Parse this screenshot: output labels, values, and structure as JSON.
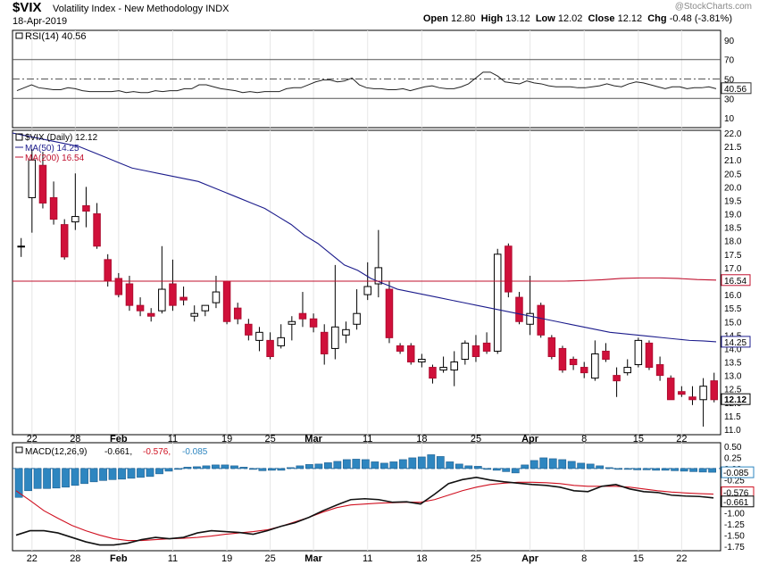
{
  "header": {
    "symbol": "$VIX",
    "name": "Volatility Index - New Methodology  INDX",
    "date": "18-Apr-2019",
    "brand": "@StockCharts.com",
    "open_label": "Open",
    "open": "12.80",
    "high_label": "High",
    "high": "13.12",
    "low_label": "Low",
    "low": "12.02",
    "close_label": "Close",
    "close": "12.12",
    "chg_label": "Chg",
    "chg": "-0.48 (-3.81%)"
  },
  "chart_data": [
    {
      "type": "line",
      "panel": "rsi",
      "legend": "RSI(14) 40.56",
      "yticks": [
        10,
        30,
        50,
        70,
        90
      ],
      "ylim": [
        0,
        100
      ],
      "reference_lines": [
        30,
        50,
        70
      ],
      "current_value_label": "40.56",
      "series": [
        {
          "name": "RSI(14)",
          "values": [
            38,
            41,
            44,
            41,
            40,
            39,
            39,
            41,
            40,
            38,
            37,
            37,
            37,
            37,
            38,
            36,
            37,
            36,
            36,
            38,
            37,
            38,
            38,
            40,
            40,
            44,
            44,
            42,
            40,
            39,
            38,
            36,
            37,
            36,
            37,
            37,
            37,
            40,
            41,
            41,
            44,
            47,
            49,
            49,
            47,
            48,
            51,
            44,
            41,
            40,
            40,
            39,
            39,
            40,
            38,
            40,
            42,
            43,
            41,
            40,
            40,
            42,
            45,
            51,
            57,
            57,
            53,
            47,
            46,
            45,
            48,
            46,
            45,
            43,
            42,
            42,
            42,
            41,
            41,
            42,
            43,
            45,
            43,
            42,
            45,
            47,
            46,
            44,
            42,
            40,
            42,
            42,
            40,
            41,
            41,
            42,
            40
          ]
        }
      ]
    },
    {
      "type": "candlestick",
      "panel": "price",
      "legend": [
        "$VIX (Daily) 12.12",
        "MA(50) 14.25",
        "MA(200) 16.54"
      ],
      "yticks": [
        11.0,
        11.5,
        12.0,
        12.5,
        13.0,
        13.5,
        14.0,
        14.5,
        15.0,
        15.5,
        16.0,
        16.5,
        17.0,
        17.5,
        18.0,
        18.5,
        19.0,
        19.5,
        20.0,
        20.5,
        21.0,
        21.5,
        22.0
      ],
      "ytick_labels": [
        "11.0",
        "11.5",
        "12.0",
        "12.5",
        "13.0",
        "13.5",
        "14.0",
        "14.5",
        "15.0",
        "15.5",
        "16.0",
        "16.5",
        "17.0",
        "17.5",
        "18.0",
        "18.5",
        "19.0",
        "19.5",
        "20.0",
        "20.5",
        "21.0",
        "21.5",
        "22.0"
      ],
      "ylim": [
        10.8,
        22.1
      ],
      "last_value_labels": {
        "ma200": "16.54",
        "ma50": "14.25",
        "close": "12.12"
      },
      "candles": [
        {
          "o": 17.8,
          "h": 18.1,
          "l": 17.4,
          "c": 17.8
        },
        {
          "o": 19.6,
          "h": 21.4,
          "l": 18.3,
          "c": 21.0
        },
        {
          "o": 20.8,
          "h": 21.3,
          "l": 19.2,
          "c": 19.4
        },
        {
          "o": 19.6,
          "h": 20.2,
          "l": 18.6,
          "c": 18.8
        },
        {
          "o": 18.6,
          "h": 18.8,
          "l": 17.3,
          "c": 17.4
        },
        {
          "o": 18.7,
          "h": 20.5,
          "l": 18.4,
          "c": 18.9
        },
        {
          "o": 19.3,
          "h": 20.0,
          "l": 18.5,
          "c": 19.1
        },
        {
          "o": 19.0,
          "h": 19.4,
          "l": 17.7,
          "c": 17.8
        },
        {
          "o": 17.3,
          "h": 17.5,
          "l": 16.3,
          "c": 16.5
        },
        {
          "o": 16.6,
          "h": 16.8,
          "l": 15.9,
          "c": 16.0
        },
        {
          "o": 16.4,
          "h": 16.7,
          "l": 15.4,
          "c": 15.6
        },
        {
          "o": 15.6,
          "h": 15.9,
          "l": 15.2,
          "c": 15.4
        },
        {
          "o": 15.3,
          "h": 15.5,
          "l": 15.0,
          "c": 15.2
        },
        {
          "o": 15.4,
          "h": 17.8,
          "l": 15.3,
          "c": 16.2
        },
        {
          "o": 16.4,
          "h": 17.3,
          "l": 15.4,
          "c": 15.6
        },
        {
          "o": 15.9,
          "h": 16.3,
          "l": 15.6,
          "c": 15.8
        },
        {
          "o": 15.2,
          "h": 15.6,
          "l": 15.0,
          "c": 15.3
        },
        {
          "o": 15.4,
          "h": 15.6,
          "l": 15.2,
          "c": 15.6
        },
        {
          "o": 15.7,
          "h": 16.7,
          "l": 15.5,
          "c": 16.1
        },
        {
          "o": 16.5,
          "h": 16.5,
          "l": 14.9,
          "c": 15.0
        },
        {
          "o": 15.5,
          "h": 15.7,
          "l": 14.9,
          "c": 15.1
        },
        {
          "o": 14.9,
          "h": 15.1,
          "l": 14.3,
          "c": 14.5
        },
        {
          "o": 14.3,
          "h": 14.8,
          "l": 13.9,
          "c": 14.6
        },
        {
          "o": 14.3,
          "h": 14.6,
          "l": 13.6,
          "c": 13.7
        },
        {
          "o": 14.1,
          "h": 14.9,
          "l": 14.0,
          "c": 14.4
        },
        {
          "o": 14.9,
          "h": 15.2,
          "l": 14.3,
          "c": 15.0
        },
        {
          "o": 15.3,
          "h": 16.1,
          "l": 14.8,
          "c": 15.1
        },
        {
          "o": 15.1,
          "h": 15.3,
          "l": 14.6,
          "c": 14.8
        },
        {
          "o": 14.6,
          "h": 14.9,
          "l": 13.4,
          "c": 13.8
        },
        {
          "o": 14.0,
          "h": 17.1,
          "l": 13.6,
          "c": 14.8
        },
        {
          "o": 14.5,
          "h": 15.0,
          "l": 14.2,
          "c": 14.7
        },
        {
          "o": 14.9,
          "h": 16.2,
          "l": 14.7,
          "c": 15.3
        },
        {
          "o": 16.0,
          "h": 17.2,
          "l": 15.8,
          "c": 16.3
        },
        {
          "o": 16.4,
          "h": 18.4,
          "l": 15.9,
          "c": 17.0
        },
        {
          "o": 16.2,
          "h": 16.5,
          "l": 14.2,
          "c": 14.4
        },
        {
          "o": 14.1,
          "h": 14.2,
          "l": 13.8,
          "c": 13.9
        },
        {
          "o": 14.1,
          "h": 14.2,
          "l": 13.4,
          "c": 13.5
        },
        {
          "o": 13.5,
          "h": 13.8,
          "l": 13.3,
          "c": 13.6
        },
        {
          "o": 13.3,
          "h": 13.4,
          "l": 12.7,
          "c": 12.9
        },
        {
          "o": 13.2,
          "h": 13.7,
          "l": 13.1,
          "c": 13.3
        },
        {
          "o": 13.2,
          "h": 13.9,
          "l": 12.6,
          "c": 13.5
        },
        {
          "o": 13.6,
          "h": 14.3,
          "l": 13.4,
          "c": 14.2
        },
        {
          "o": 14.1,
          "h": 14.5,
          "l": 13.5,
          "c": 13.7
        },
        {
          "o": 14.2,
          "h": 14.6,
          "l": 13.8,
          "c": 13.9
        },
        {
          "o": 13.9,
          "h": 17.7,
          "l": 13.8,
          "c": 17.5
        },
        {
          "o": 17.8,
          "h": 17.9,
          "l": 15.9,
          "c": 16.1
        },
        {
          "o": 15.9,
          "h": 16.1,
          "l": 14.9,
          "c": 15.0
        },
        {
          "o": 14.9,
          "h": 16.7,
          "l": 14.5,
          "c": 15.3
        },
        {
          "o": 15.6,
          "h": 15.7,
          "l": 14.4,
          "c": 14.5
        },
        {
          "o": 14.4,
          "h": 14.5,
          "l": 13.6,
          "c": 13.7
        },
        {
          "o": 14.0,
          "h": 14.1,
          "l": 13.1,
          "c": 13.2
        },
        {
          "o": 13.6,
          "h": 13.7,
          "l": 13.2,
          "c": 13.4
        },
        {
          "o": 13.3,
          "h": 13.5,
          "l": 12.9,
          "c": 13.1
        },
        {
          "o": 12.9,
          "h": 14.3,
          "l": 12.8,
          "c": 13.8
        },
        {
          "o": 13.9,
          "h": 14.2,
          "l": 13.5,
          "c": 13.6
        },
        {
          "o": 13.0,
          "h": 13.3,
          "l": 12.2,
          "c": 12.8
        },
        {
          "o": 13.1,
          "h": 13.6,
          "l": 13.0,
          "c": 13.3
        },
        {
          "o": 13.4,
          "h": 14.4,
          "l": 13.3,
          "c": 14.3
        },
        {
          "o": 14.2,
          "h": 14.3,
          "l": 13.2,
          "c": 13.3
        },
        {
          "o": 13.4,
          "h": 13.7,
          "l": 12.8,
          "c": 13.0
        },
        {
          "o": 12.9,
          "h": 13.0,
          "l": 12.1,
          "c": 12.1
        },
        {
          "o": 12.4,
          "h": 12.6,
          "l": 12.2,
          "c": 12.3
        },
        {
          "o": 12.2,
          "h": 12.6,
          "l": 11.9,
          "c": 12.1
        },
        {
          "o": 12.1,
          "h": 12.9,
          "l": 11.1,
          "c": 12.6
        },
        {
          "o": 12.8,
          "h": 13.1,
          "l": 12.0,
          "c": 12.1
        }
      ],
      "series": [
        {
          "name": "MA(50)",
          "color": "#1c1c8c",
          "values": [
            22.0,
            21.9,
            21.8,
            21.7,
            21.6,
            21.5,
            21.3,
            21.1,
            20.9,
            20.7,
            20.6,
            20.5,
            20.4,
            20.3,
            20.2,
            20.0,
            19.8,
            19.6,
            19.4,
            19.2,
            18.9,
            18.6,
            18.2,
            17.9,
            17.5,
            17.1,
            16.9,
            16.6,
            16.4,
            16.2,
            16.1,
            16.0,
            15.9,
            15.8,
            15.7,
            15.6,
            15.5,
            15.4,
            15.3,
            15.2,
            15.1,
            15.0,
            14.9,
            14.8,
            14.7,
            14.6,
            14.55,
            14.5,
            14.45,
            14.4,
            14.35,
            14.3,
            14.28,
            14.25
          ]
        },
        {
          "name": "MA(200)",
          "color": "#c0102e",
          "values": [
            16.5,
            16.5,
            16.5,
            16.5,
            16.5,
            16.5,
            16.5,
            16.5,
            16.5,
            16.5,
            16.5,
            16.5,
            16.5,
            16.5,
            16.5,
            16.5,
            16.5,
            16.5,
            16.5,
            16.5,
            16.5,
            16.5,
            16.5,
            16.5,
            16.5,
            16.5,
            16.5,
            16.5,
            16.5,
            16.5,
            16.52,
            16.55,
            16.6,
            16.62,
            16.62,
            16.6,
            16.56,
            16.54
          ]
        }
      ]
    },
    {
      "type": "line",
      "panel": "macd",
      "legend": {
        "label": "MACD(12,26,9)",
        "v1": "-0.661",
        "v2": "-0.576",
        "v3": "-0.085"
      },
      "yticks": [
        -1.75,
        -1.5,
        -1.25,
        -1.0,
        -0.75,
        -0.5,
        -0.25,
        0.0,
        0.25,
        0.5
      ],
      "ytick_labels": [
        "-1.75",
        "-1.50",
        "-1.25",
        "-1.00",
        "-0.75",
        "-0.50",
        "-0.25",
        "0.00",
        "0.25",
        "0.50"
      ],
      "ylim": [
        -1.85,
        0.58
      ],
      "last_value_labels": {
        "hist": "-0.085",
        "signal": "-0.576",
        "macd": "-0.661"
      },
      "series": [
        {
          "name": "MACD",
          "color": "#111111",
          "values": [
            -1.5,
            -1.4,
            -1.4,
            -1.45,
            -1.55,
            -1.65,
            -1.72,
            -1.72,
            -1.68,
            -1.6,
            -1.55,
            -1.58,
            -1.55,
            -1.45,
            -1.4,
            -1.42,
            -1.44,
            -1.48,
            -1.4,
            -1.3,
            -1.22,
            -1.1,
            -0.95,
            -0.82,
            -0.7,
            -0.68,
            -0.7,
            -0.76,
            -0.75,
            -0.8,
            -0.58,
            -0.34,
            -0.25,
            -0.2,
            -0.26,
            -0.3,
            -0.33,
            -0.36,
            -0.38,
            -0.42,
            -0.5,
            -0.52,
            -0.4,
            -0.36,
            -0.46,
            -0.52,
            -0.54,
            -0.6,
            -0.62,
            -0.63,
            -0.661
          ]
        },
        {
          "name": "Signal",
          "color": "#d01020",
          "values": [
            -0.5,
            -0.72,
            -0.95,
            -1.12,
            -1.28,
            -1.4,
            -1.5,
            -1.58,
            -1.62,
            -1.62,
            -1.6,
            -1.58,
            -1.57,
            -1.55,
            -1.52,
            -1.48,
            -1.45,
            -1.42,
            -1.38,
            -1.3,
            -1.2,
            -1.1,
            -0.98,
            -0.88,
            -0.82,
            -0.8,
            -0.78,
            -0.77,
            -0.76,
            -0.76,
            -0.7,
            -0.6,
            -0.5,
            -0.42,
            -0.36,
            -0.33,
            -0.31,
            -0.31,
            -0.32,
            -0.34,
            -0.38,
            -0.4,
            -0.4,
            -0.4,
            -0.42,
            -0.46,
            -0.5,
            -0.53,
            -0.55,
            -0.566,
            -0.576
          ]
        },
        {
          "name": "Histogram",
          "color": "#2e86c0",
          "values": [
            -0.65,
            -0.5,
            -0.45,
            -0.45,
            -0.44,
            -0.42,
            -0.38,
            -0.34,
            -0.3,
            -0.27,
            -0.25,
            -0.24,
            -0.22,
            -0.2,
            -0.18,
            -0.12,
            -0.06,
            -0.02,
            0.03,
            0.04,
            0.06,
            0.08,
            0.08,
            0.06,
            0.03,
            -0.02,
            -0.05,
            -0.04,
            -0.04,
            0.02,
            0.06,
            0.09,
            0.1,
            0.13,
            0.16,
            0.2,
            0.21,
            0.2,
            0.15,
            0.12,
            0.15,
            0.2,
            0.24,
            0.26,
            0.31,
            0.27,
            0.15,
            0.1,
            0.06,
            0.05,
            0.0,
            -0.04,
            -0.07,
            -0.1,
            0.08,
            0.18,
            0.24,
            0.22,
            0.2,
            0.16,
            0.12,
            0.1,
            0.06,
            0.02,
            -0.01,
            -0.02,
            -0.03,
            -0.03,
            -0.04,
            -0.04,
            -0.05,
            -0.06,
            -0.07,
            -0.08,
            -0.085
          ]
        }
      ]
    }
  ],
  "x_axis": {
    "labels": [
      {
        "text": "22",
        "bold": false,
        "i": 1
      },
      {
        "text": "28",
        "bold": false,
        "i": 5
      },
      {
        "text": "Feb",
        "bold": true,
        "i": 9
      },
      {
        "text": "11",
        "bold": false,
        "i": 14
      },
      {
        "text": "19",
        "bold": false,
        "i": 19
      },
      {
        "text": "25",
        "bold": false,
        "i": 23
      },
      {
        "text": "Mar",
        "bold": true,
        "i": 27
      },
      {
        "text": "11",
        "bold": false,
        "i": 32
      },
      {
        "text": "18",
        "bold": false,
        "i": 37
      },
      {
        "text": "25",
        "bold": false,
        "i": 42
      },
      {
        "text": "Apr",
        "bold": true,
        "i": 47
      },
      {
        "text": "8",
        "bold": false,
        "i": 52
      },
      {
        "text": "15",
        "bold": false,
        "i": 57
      },
      {
        "text": "22",
        "bold": false,
        "i": 61
      }
    ]
  }
}
